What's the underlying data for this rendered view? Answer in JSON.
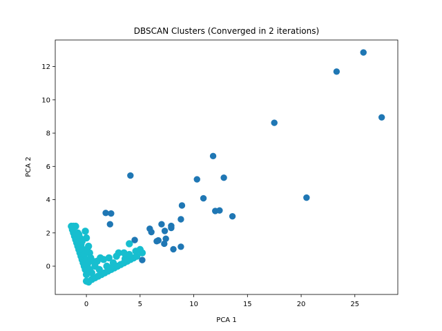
{
  "chart_data": {
    "type": "scatter",
    "title": "DBSCAN Clusters (Converged in 2 iterations)",
    "xlabel": "PCA 1",
    "ylabel": "PCA 2",
    "xlim": [
      -2.9,
      29.0
    ],
    "ylim": [
      -1.7,
      13.6
    ],
    "xticks": [
      0,
      5,
      10,
      15,
      20,
      25
    ],
    "yticks": [
      0,
      2,
      4,
      6,
      8,
      10,
      12
    ],
    "grid": false,
    "colors": {
      "outlier": "#1f77b4",
      "cluster": "#17becf"
    },
    "series": [
      {
        "color": "#1f77b4",
        "points": [
          [
            25.8,
            12.85
          ],
          [
            23.3,
            11.7
          ],
          [
            27.5,
            8.95
          ],
          [
            17.5,
            8.62
          ],
          [
            20.5,
            4.12
          ],
          [
            11.8,
            6.62
          ],
          [
            10.3,
            5.22
          ],
          [
            12.8,
            5.32
          ],
          [
            10.9,
            4.08
          ],
          [
            12.0,
            3.32
          ],
          [
            12.4,
            3.35
          ],
          [
            13.6,
            3.0
          ],
          [
            8.9,
            3.65
          ],
          [
            8.8,
            2.82
          ],
          [
            8.8,
            1.17
          ],
          [
            8.1,
            1.02
          ],
          [
            7.9,
            2.42
          ],
          [
            7.9,
            2.3
          ],
          [
            7.0,
            2.52
          ],
          [
            7.3,
            2.12
          ],
          [
            7.4,
            1.65
          ],
          [
            7.25,
            1.35
          ],
          [
            6.7,
            1.55
          ],
          [
            6.55,
            1.5
          ],
          [
            5.9,
            2.25
          ],
          [
            6.05,
            2.05
          ],
          [
            4.1,
            5.45
          ],
          [
            4.5,
            1.57
          ],
          [
            5.2,
            0.37
          ],
          [
            1.8,
            3.2
          ],
          [
            2.3,
            3.17
          ],
          [
            2.2,
            2.52
          ]
        ]
      },
      {
        "color": "#17becf",
        "points": [
          [
            -1.4,
            2.4
          ],
          [
            -1.3,
            2.2
          ],
          [
            -1.2,
            2.0
          ],
          [
            -1.1,
            1.8
          ],
          [
            -1.0,
            1.6
          ],
          [
            -0.9,
            1.4
          ],
          [
            -0.8,
            1.2
          ],
          [
            -0.7,
            1.0
          ],
          [
            -0.6,
            0.8
          ],
          [
            -0.5,
            0.6
          ],
          [
            -0.4,
            0.4
          ],
          [
            -0.3,
            0.2
          ],
          [
            -0.2,
            0.0
          ],
          [
            -0.1,
            -0.2
          ],
          [
            0.0,
            -0.5
          ],
          [
            0.0,
            -0.9
          ],
          [
            0.2,
            -0.95
          ],
          [
            0.5,
            -0.8
          ],
          [
            0.8,
            -0.7
          ],
          [
            1.1,
            -0.6
          ],
          [
            1.4,
            -0.5
          ],
          [
            1.7,
            -0.4
          ],
          [
            2.0,
            -0.3
          ],
          [
            2.3,
            -0.2
          ],
          [
            2.6,
            -0.1
          ],
          [
            2.9,
            0.0
          ],
          [
            3.2,
            0.1
          ],
          [
            3.5,
            0.2
          ],
          [
            3.8,
            0.3
          ],
          [
            4.1,
            0.4
          ],
          [
            4.4,
            0.5
          ],
          [
            4.7,
            0.6
          ],
          [
            -1.0,
            2.4
          ],
          [
            -0.8,
            2.0
          ],
          [
            -0.6,
            1.7
          ],
          [
            -0.5,
            1.3
          ],
          [
            -0.3,
            1.0
          ],
          [
            -0.2,
            0.7
          ],
          [
            0.0,
            0.4
          ],
          [
            0.1,
            0.1
          ],
          [
            0.3,
            -0.2
          ],
          [
            0.5,
            -0.4
          ],
          [
            1.0,
            0.3
          ],
          [
            1.3,
            0.5
          ],
          [
            1.6,
            0.4
          ],
          [
            2.1,
            0.5
          ],
          [
            2.5,
            0.2
          ],
          [
            2.8,
            0.6
          ],
          [
            3.0,
            0.8
          ],
          [
            3.5,
            0.8
          ],
          [
            4.0,
            0.7
          ],
          [
            4.6,
            0.9
          ],
          [
            5.0,
            1.0
          ],
          [
            5.2,
            0.8
          ],
          [
            4.0,
            1.35
          ],
          [
            3.6,
            0.45
          ],
          [
            0.6,
            0.3
          ],
          [
            0.8,
            0.0
          ],
          [
            -0.1,
            2.1
          ],
          [
            0.0,
            1.7
          ],
          [
            0.2,
            1.2
          ],
          [
            0.3,
            0.8
          ],
          [
            0.4,
            0.5
          ],
          [
            1.2,
            -0.2
          ],
          [
            1.9,
            0.0
          ],
          [
            2.2,
            -0.1
          ],
          [
            0.1,
            0.9
          ],
          [
            -0.7,
            1.9
          ],
          [
            -1.2,
            2.4
          ],
          [
            -0.4,
            1.5
          ]
        ]
      }
    ]
  }
}
